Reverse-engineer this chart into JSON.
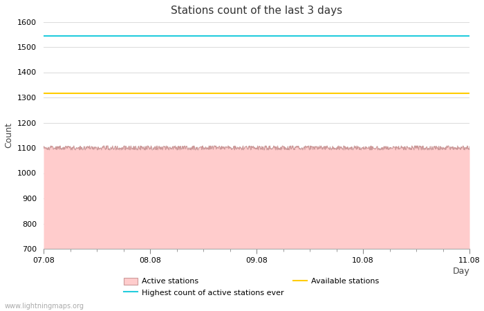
{
  "title": "Stations count of the last 3 days",
  "xlabel": "Day",
  "ylabel": "Count",
  "ylim": [
    700,
    1600
  ],
  "yticks": [
    700,
    800,
    900,
    1000,
    1100,
    1200,
    1300,
    1400,
    1500,
    1600
  ],
  "x_start": 0,
  "x_end": 4,
  "xtick_positions": [
    0,
    1,
    2,
    3,
    4
  ],
  "xtick_labels": [
    "07.08",
    "08.08",
    "09.08",
    "10.08",
    "11.08"
  ],
  "active_stations_value": 1100,
  "active_stations_noise": 8,
  "highest_count_value": 1545,
  "available_stations_value": 1317,
  "active_fill_color": "#ffcccc",
  "active_line_color": "#cc9999",
  "highest_color": "#22ccdd",
  "available_color": "#ffcc00",
  "background_color": "#ffffff",
  "grid_color": "#dddddd",
  "watermark": "www.lightningmaps.org",
  "title_fontsize": 11,
  "axis_fontsize": 9,
  "tick_fontsize": 8,
  "legend_fontsize": 8
}
